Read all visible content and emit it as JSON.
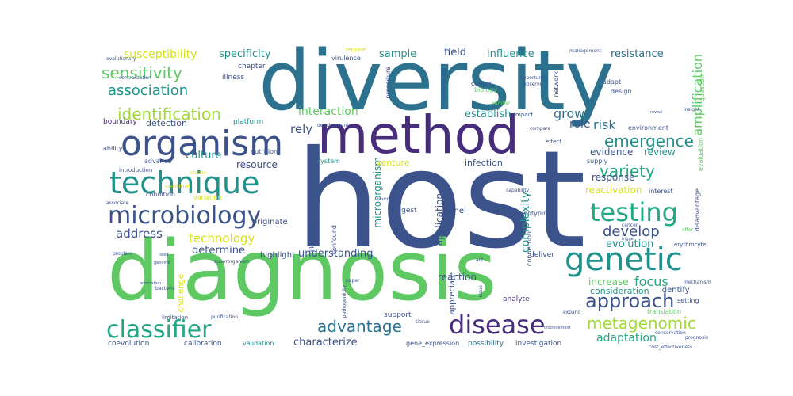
{
  "colors": {
    "yellow": "#d8e219",
    "lightgreen": "#a0da39",
    "green": "#5ec962",
    "seagreen": "#22a884",
    "teal": "#21918c",
    "blue": "#2c728e",
    "indigo": "#3b528b",
    "purple": "#472d7b",
    "darkpurple": "#440154",
    "faint": "#c8e4c8"
  },
  "words": [
    {
      "text": "host",
      "color": "indigo"
    },
    {
      "text": "diversity",
      "color": "blue"
    },
    {
      "text": "method",
      "color": "purple"
    },
    {
      "text": "diagnosis",
      "color": "green"
    },
    {
      "text": "organism",
      "color": "indigo"
    },
    {
      "text": "technique",
      "color": "teal"
    },
    {
      "text": "microbiology",
      "color": "indigo"
    },
    {
      "text": "genetic",
      "color": "teal"
    },
    {
      "text": "testing",
      "color": "seagreen"
    },
    {
      "text": "disease",
      "color": "purple"
    },
    {
      "text": "classifier",
      "color": "seagreen"
    },
    {
      "text": "approach",
      "color": "indigo"
    },
    {
      "text": "metagenomic",
      "color": "lightgreen"
    },
    {
      "text": "advantage",
      "color": "blue"
    },
    {
      "text": "emergence",
      "color": "teal"
    },
    {
      "text": "variety",
      "color": "seagreen"
    },
    {
      "text": "identification",
      "color": "lightgreen"
    },
    {
      "text": "sensitivity",
      "color": "green"
    },
    {
      "text": "association",
      "color": "teal"
    },
    {
      "text": "susceptibility",
      "color": "yellow"
    },
    {
      "text": "specificity",
      "color": "teal"
    },
    {
      "text": "sample",
      "color": "teal"
    },
    {
      "text": "field",
      "color": "indigo"
    },
    {
      "text": "influence",
      "color": "teal"
    },
    {
      "text": "resistance",
      "color": "blue"
    },
    {
      "text": "grow",
      "color": "blue"
    },
    {
      "text": "role",
      "color": "indigo"
    },
    {
      "text": "risk",
      "color": "blue"
    },
    {
      "text": "develop",
      "color": "indigo"
    },
    {
      "text": "evolution",
      "color": "teal"
    },
    {
      "text": "address",
      "color": "indigo"
    },
    {
      "text": "technology",
      "color": "yellow"
    },
    {
      "text": "determine",
      "color": "indigo"
    },
    {
      "text": "culture",
      "color": "teal"
    },
    {
      "text": "rely",
      "color": "indigo"
    },
    {
      "text": "interaction",
      "color": "green"
    },
    {
      "text": "detection",
      "color": "indigo"
    },
    {
      "text": "establish",
      "color": "teal"
    },
    {
      "text": "understanding",
      "color": "indigo"
    },
    {
      "text": "characterize",
      "color": "indigo"
    },
    {
      "text": "adaptation",
      "color": "seagreen"
    },
    {
      "text": "focus",
      "color": "seagreen"
    },
    {
      "text": "increase",
      "color": "green"
    },
    {
      "text": "response",
      "color": "indigo"
    },
    {
      "text": "reactivation",
      "color": "yellow"
    },
    {
      "text": "evidence",
      "color": "indigo"
    },
    {
      "text": "review",
      "color": "teal"
    },
    {
      "text": "infection",
      "color": "indigo"
    },
    {
      "text": "reaction",
      "color": "indigo"
    },
    {
      "text": "consideration",
      "color": "teal"
    },
    {
      "text": "identify",
      "color": "indigo"
    },
    {
      "text": "amplification",
      "color": "green"
    },
    {
      "text": "complexity",
      "color": "teal"
    },
    {
      "text": "application",
      "color": "indigo"
    },
    {
      "text": "microorganism",
      "color": "teal"
    },
    {
      "text": "resource",
      "color": "indigo"
    },
    {
      "text": "venture",
      "color": "yellow"
    },
    {
      "text": "originate",
      "color": "indigo"
    },
    {
      "text": "highlight",
      "color": "indigo"
    },
    {
      "text": "calibration",
      "color": "indigo"
    },
    {
      "text": "validation",
      "color": "teal"
    },
    {
      "text": "possibility",
      "color": "blue"
    },
    {
      "text": "investigation",
      "color": "indigo"
    },
    {
      "text": "gene_expression",
      "color": "indigo"
    },
    {
      "text": "coevolution",
      "color": "indigo"
    },
    {
      "text": "boundary",
      "color": "purple"
    },
    {
      "text": "platform",
      "color": "teal"
    },
    {
      "text": "condition",
      "color": "indigo"
    },
    {
      "text": "ability",
      "color": "indigo"
    },
    {
      "text": "advance",
      "color": "indigo"
    },
    {
      "text": "introduction",
      "color": "indigo"
    },
    {
      "text": "illness",
      "color": "indigo"
    },
    {
      "text": "chapter",
      "color": "indigo"
    },
    {
      "text": "nutrition",
      "color": "indigo"
    },
    {
      "text": "system",
      "color": "teal"
    },
    {
      "text": "suggest",
      "color": "indigo"
    },
    {
      "text": "panel",
      "color": "indigo"
    },
    {
      "text": "analyte",
      "color": "purple"
    },
    {
      "text": "deliver",
      "color": "indigo"
    },
    {
      "text": "support",
      "color": "indigo"
    },
    {
      "text": "interest",
      "color": "indigo"
    },
    {
      "text": "setting",
      "color": "indigo"
    },
    {
      "text": "environment",
      "color": "indigo"
    },
    {
      "text": "supply",
      "color": "indigo"
    },
    {
      "text": "effect",
      "color": "indigo"
    },
    {
      "text": "adapt",
      "color": "indigo"
    },
    {
      "text": "design",
      "color": "indigo"
    },
    {
      "text": "control",
      "color": "indigo"
    },
    {
      "text": "biology",
      "color": "green"
    },
    {
      "text": "impact",
      "color": "indigo"
    },
    {
      "text": "network",
      "color": "indigo"
    },
    {
      "text": "question",
      "color": "green"
    },
    {
      "text": "evaluation",
      "color": "green"
    },
    {
      "text": "disadvantage",
      "color": "indigo"
    },
    {
      "text": "erythrocyte",
      "color": "indigo"
    },
    {
      "text": "mechanism",
      "color": "indigo"
    },
    {
      "text": "prognosis",
      "color": "indigo"
    },
    {
      "text": "insight",
      "color": "indigo"
    },
    {
      "text": "translation",
      "color": "green"
    },
    {
      "text": "conservation",
      "color": "indigo"
    },
    {
      "text": "management",
      "color": "indigo"
    },
    {
      "text": "require",
      "color": "yellow"
    },
    {
      "text": "virulence",
      "color": "indigo"
    },
    {
      "text": "procedure",
      "color": "indigo"
    },
    {
      "text": "contribute",
      "color": "indigo"
    },
    {
      "text": "development",
      "color": "indigo"
    },
    {
      "text": "genotyping",
      "color": "indigo"
    },
    {
      "text": "capability",
      "color": "indigo"
    },
    {
      "text": "connection",
      "color": "indigo"
    },
    {
      "text": "appreciate",
      "color": "indigo"
    },
    {
      "text": "challenge",
      "color": "yellow"
    },
    {
      "text": "limitation",
      "color": "indigo"
    },
    {
      "text": "purification",
      "color": "indigo"
    },
    {
      "text": "confound",
      "color": "indigo"
    },
    {
      "text": "likelihood",
      "color": "indigo"
    },
    {
      "text": "pathogenicity",
      "color": "indigo"
    },
    {
      "text": "sentinel",
      "color": "yellow"
    },
    {
      "text": "variation",
      "color": "yellow"
    },
    {
      "text": "centralization",
      "color": "indigo"
    },
    {
      "text": "evolutionary",
      "color": "indigo"
    },
    {
      "text": "cost_effectiveness",
      "color": "indigo"
    },
    {
      "text": "improvement",
      "color": "indigo"
    },
    {
      "text": "superorganism",
      "color": "indigo"
    },
    {
      "text": "toxicity",
      "color": "indigo"
    },
    {
      "text": "annotation",
      "color": "indigo"
    },
    {
      "text": "expand",
      "color": "indigo"
    },
    {
      "text": "observe",
      "color": "indigo"
    },
    {
      "text": "opportunity",
      "color": "indigo"
    },
    {
      "text": "number",
      "color": "green"
    },
    {
      "text": "compare",
      "color": "indigo"
    },
    {
      "text": "cancer",
      "color": "indigo"
    },
    {
      "text": "offer",
      "color": "green"
    },
    {
      "text": "problem",
      "color": "indigo"
    },
    {
      "text": "paper",
      "color": "indigo"
    },
    {
      "text": "issue",
      "color": "indigo"
    },
    {
      "text": "cluster",
      "color": "yellow"
    },
    {
      "text": "genome",
      "color": "indigo"
    },
    {
      "text": "reveal",
      "color": "indigo"
    },
    {
      "text": "trigger",
      "color": "indigo"
    },
    {
      "text": "tissue",
      "color": "indigo"
    },
    {
      "text": "bacteria",
      "color": "indigo"
    },
    {
      "text": "need",
      "color": "indigo"
    },
    {
      "text": "act",
      "color": "indigo"
    },
    {
      "text": "associate",
      "color": "indigo"
    }
  ]
}
